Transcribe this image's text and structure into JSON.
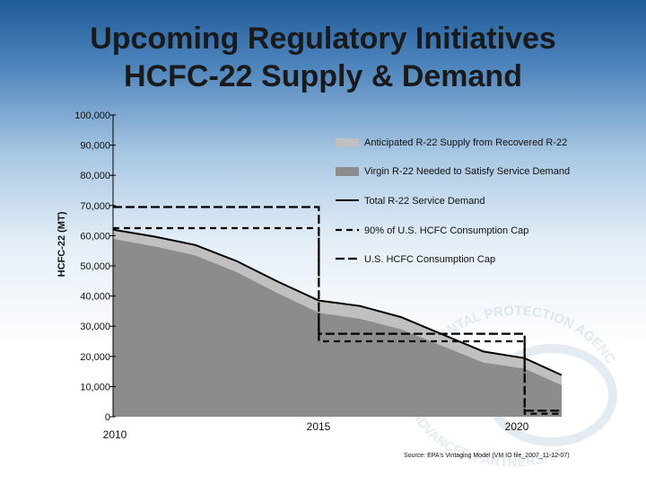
{
  "title": {
    "line1": "Upcoming Regulatory Initiatives",
    "line2": "HCFC-22 Supply & Demand"
  },
  "watermark_text": {
    "top": "ENVIRONMENTAL PROTECTION AGENCY",
    "bottom": "ADVANCED PARTNERSHIP"
  },
  "source": "Source: EPA's Vintaging Model (VM IO file_2007_11-12-07)",
  "colors": {
    "recovered": "#c0c0c0",
    "virgin": "#8c8c8c",
    "line": "#000000"
  },
  "chart_data": {
    "type": "area",
    "ylabel": "HCFC-22 (MT)",
    "xlabel": "",
    "ylim": [
      0,
      100000
    ],
    "xlim": [
      2010,
      2020.9
    ],
    "y_ticks": [
      0,
      10000,
      20000,
      30000,
      40000,
      50000,
      60000,
      70000,
      80000,
      90000,
      100000
    ],
    "y_tick_labels": [
      "0",
      "10,000",
      "20,000",
      "30,000",
      "40,000",
      "50,000",
      "60,000",
      "70,000",
      "80,000",
      "90,000",
      "100,000"
    ],
    "x_ticks": [
      2010,
      2015,
      2020
    ],
    "x_tick_labels": [
      "2010",
      "2015",
      "2020"
    ],
    "x": [
      2010,
      2011,
      2012,
      2013,
      2014,
      2015,
      2016,
      2017,
      2018,
      2019,
      2020,
      2020.9
    ],
    "legend_position": "top-right",
    "grid": false,
    "series": [
      {
        "name": "Anticipated R-22 Supply from Recovered R-22",
        "kind": "area",
        "values": [
          3000,
          3200,
          3400,
          3600,
          3800,
          4000,
          4200,
          4000,
          3800,
          3600,
          3400,
          3300
        ]
      },
      {
        "name": "Virgin R-22 Needed to Satisfy Service Demand",
        "kind": "area",
        "values": [
          59000,
          56500,
          53500,
          48000,
          41000,
          34500,
          32500,
          29000,
          23500,
          18000,
          16000,
          10500
        ]
      },
      {
        "name": "Total R-22 Service Demand",
        "kind": "line",
        "values": [
          62000,
          59700,
          56900,
          51600,
          44800,
          38500,
          36700,
          33000,
          27300,
          21600,
          19400,
          13800
        ]
      },
      {
        "name": "90%  of U.S. HCFC Consumption Cap",
        "kind": "dashed-step",
        "points": [
          [
            2010,
            62500
          ],
          [
            2015,
            62500
          ],
          [
            2015,
            25000
          ],
          [
            2020,
            25000
          ],
          [
            2020,
            1000
          ],
          [
            2020.9,
            1000
          ]
        ]
      },
      {
        "name": "U.S. HCFC Consumption Cap",
        "kind": "dashed-step",
        "points": [
          [
            2010,
            69500
          ],
          [
            2015,
            69500
          ],
          [
            2015,
            27500
          ],
          [
            2020,
            27500
          ],
          [
            2020,
            2000
          ],
          [
            2020.9,
            2000
          ]
        ]
      }
    ]
  }
}
